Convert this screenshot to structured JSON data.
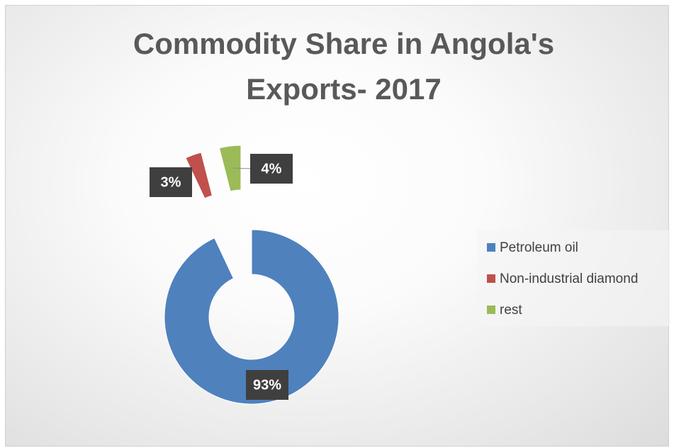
{
  "chart_data": {
    "type": "doughnut",
    "title": "Commodity Share in Angola's Exports- 2017",
    "categories": [
      "Petroleum oil",
      "Non-industrial diamond",
      "rest"
    ],
    "values": [
      93,
      3,
      4
    ],
    "value_labels": [
      "93%",
      "3%",
      "4%"
    ],
    "colors": [
      "#4f81bd",
      "#c0504d",
      "#9bbb59"
    ],
    "exploded": [
      false,
      true,
      true
    ],
    "legend": "right"
  }
}
